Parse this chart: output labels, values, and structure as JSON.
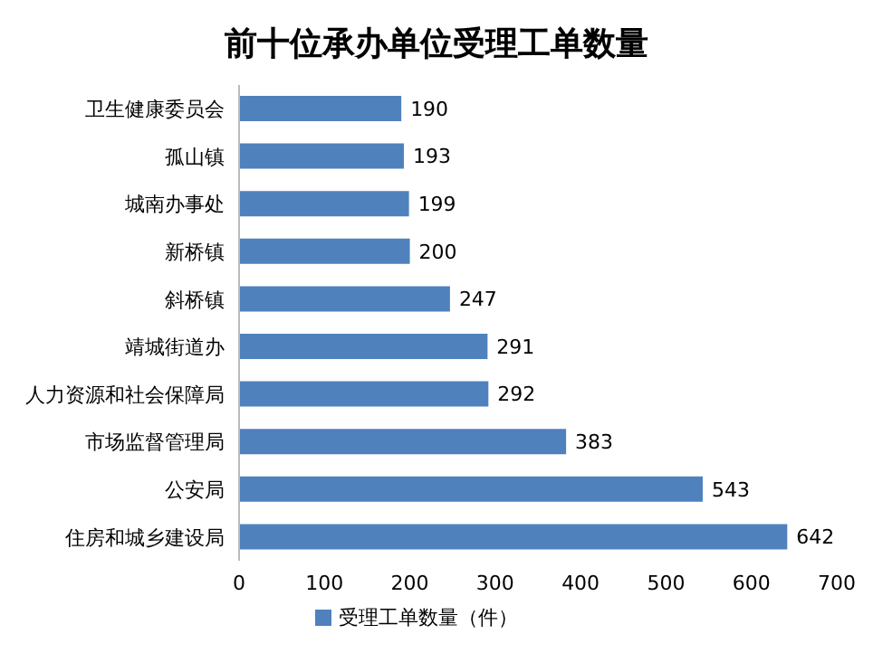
{
  "chart_data": {
    "type": "bar",
    "orientation": "horizontal",
    "title": "前十位承办单位受理工单数量",
    "categories": [
      "卫生健康委员会",
      "孤山镇",
      "城南办事处",
      "新桥镇",
      "斜桥镇",
      "靖城街道办",
      "人力资源和社会保障局",
      "市场监督管理局",
      "公安局",
      "住房和城乡建设局"
    ],
    "series": [
      {
        "name": "受理工单数量（件）",
        "color": "#4f81bd",
        "values": [
          190,
          193,
          199,
          200,
          247,
          291,
          292,
          383,
          543,
          642
        ]
      }
    ],
    "xlim": [
      0,
      700
    ],
    "xticks": [
      0,
      100,
      200,
      300,
      400,
      500,
      600,
      700
    ],
    "data_labels": true,
    "grid": false,
    "legend": "bottom"
  }
}
